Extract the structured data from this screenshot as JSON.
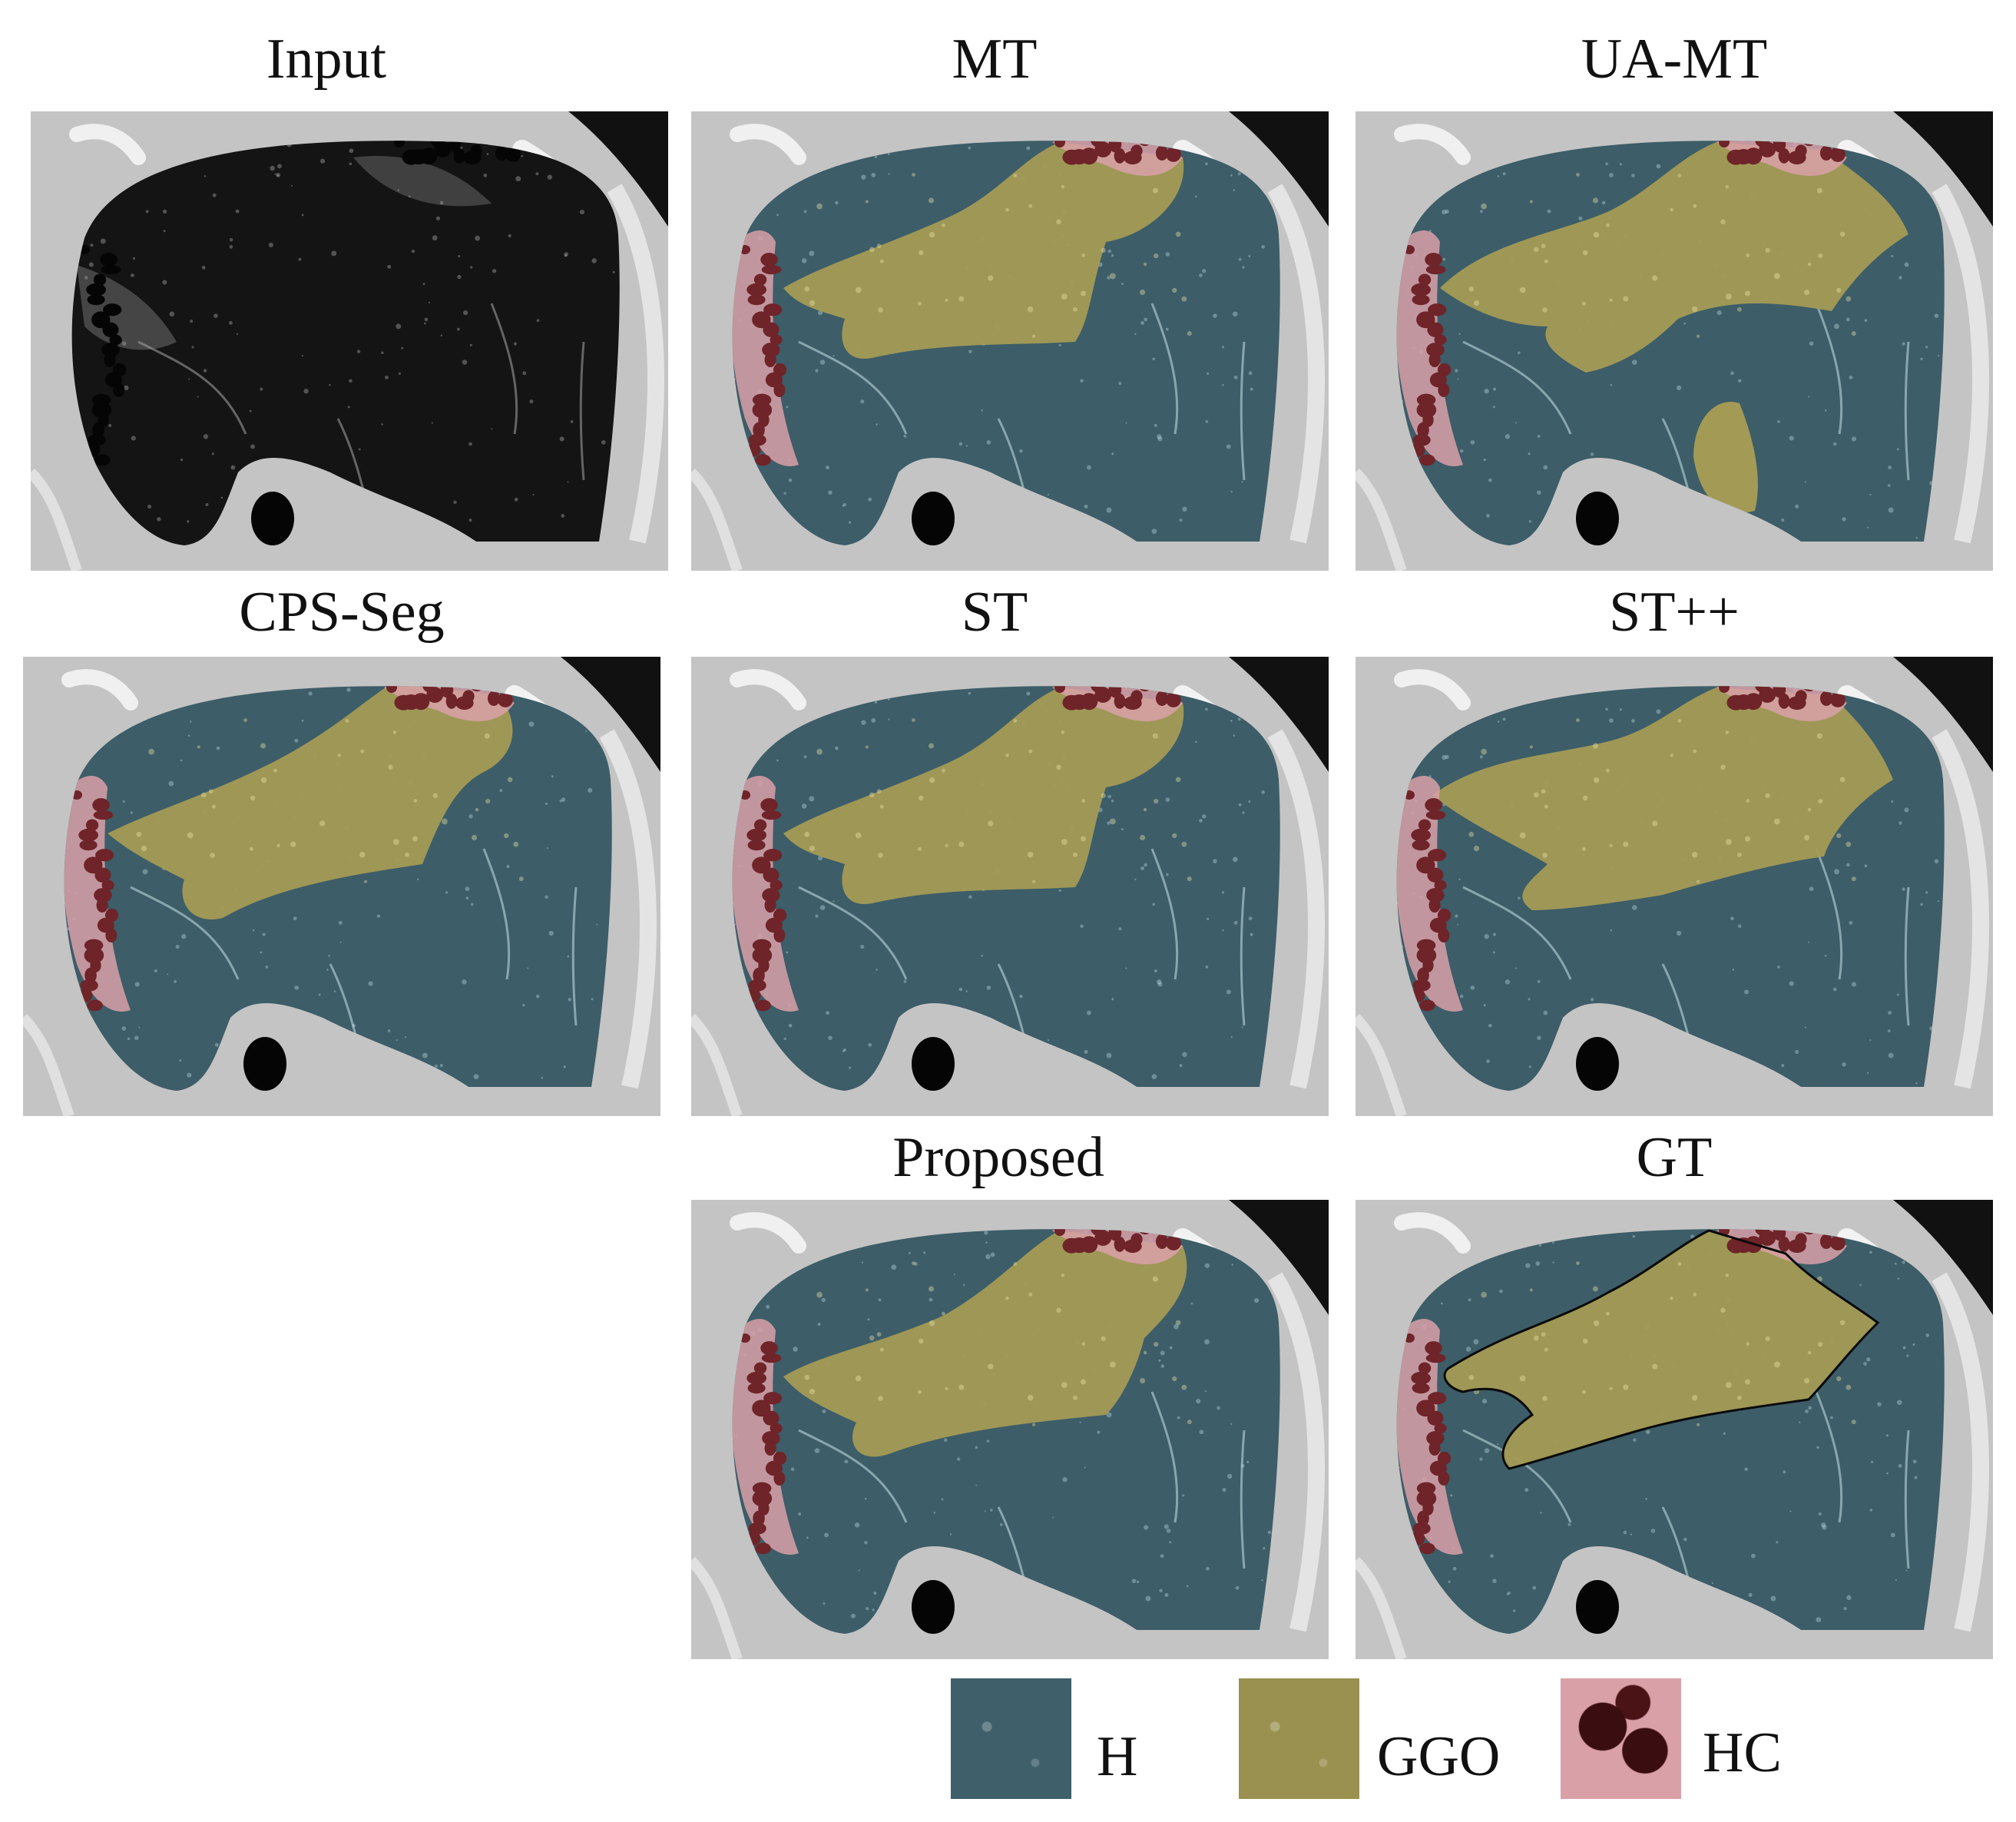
{
  "panels": [
    {
      "title": "Input",
      "kind": "input"
    },
    {
      "title": "MT",
      "kind": "mt"
    },
    {
      "title": "UA-MT",
      "kind": "uamt"
    },
    {
      "title": "CPS-Seg",
      "kind": "cps"
    },
    {
      "title": "ST",
      "kind": "st"
    },
    {
      "title": "ST++",
      "kind": "stpp"
    },
    {
      "title": "Proposed",
      "kind": "proposed"
    },
    {
      "title": "GT",
      "kind": "gt"
    }
  ],
  "legend": [
    {
      "label": "H",
      "color": "#3f5f6a"
    },
    {
      "label": "GGO",
      "color": "#9a9050"
    },
    {
      "label": "HC",
      "color": "#5a1d1f"
    }
  ],
  "colors": {
    "healthy": "#3d5d68",
    "ggo": "#a39a55",
    "honeycomb": "#6e2428",
    "honeycomb_light": "#d9a0a8",
    "tissue": "#c4c4c4",
    "background_dark": "#111111",
    "lung_dark": "#141414"
  }
}
